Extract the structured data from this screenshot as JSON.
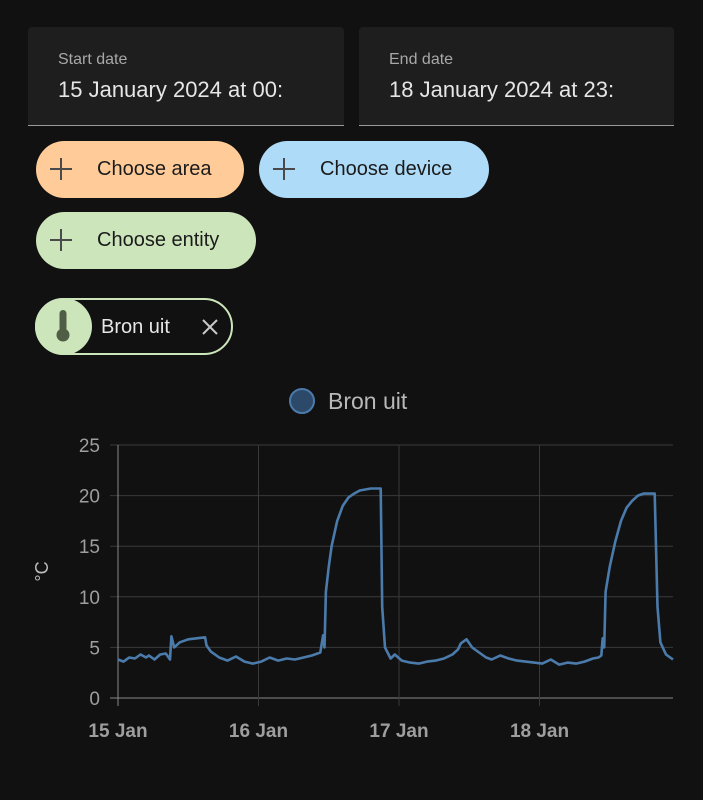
{
  "filters": {
    "start_date": {
      "label": "Start date",
      "value": "15 January 2024 at 00:"
    },
    "end_date": {
      "label": "End date",
      "value": "18 January 2024 at 23:"
    }
  },
  "targets": {
    "area": "Choose area",
    "device": "Choose device",
    "entity": "Choose entity",
    "selected_entity": {
      "label": "Bron uit",
      "icon": "thermometer-icon"
    }
  },
  "colors": {
    "area_chip": "#ffcc99",
    "device_chip": "#aedcf8",
    "entity_chip": "#cce5bb",
    "series_line": "#4b7bab",
    "legend_swatch": "#2c4969"
  },
  "chart_data": {
    "type": "line",
    "legend": [
      "Bron uit"
    ],
    "ylabel": "°C",
    "ylim": [
      0,
      25
    ],
    "yticks": [
      0,
      5,
      10,
      15,
      20,
      25
    ],
    "xlim": [
      0,
      3.95
    ],
    "xticks": [
      {
        "value": 0,
        "label": "15 Jan"
      },
      {
        "value": 1,
        "label": "16 Jan"
      },
      {
        "value": 2,
        "label": "17 Jan"
      },
      {
        "value": 3,
        "label": "18 Jan"
      }
    ],
    "grid": true,
    "series": [
      {
        "name": "Bron uit",
        "x": [
          0,
          0.04,
          0.08,
          0.12,
          0.16,
          0.2,
          0.22,
          0.26,
          0.3,
          0.34,
          0.37,
          0.38,
          0.4,
          0.44,
          0.5,
          0.56,
          0.62,
          0.63,
          0.66,
          0.72,
          0.78,
          0.84,
          0.9,
          0.96,
          1.02,
          1.08,
          1.14,
          1.2,
          1.26,
          1.32,
          1.38,
          1.44,
          1.46,
          1.47,
          1.48,
          1.5,
          1.52,
          1.56,
          1.6,
          1.64,
          1.68,
          1.72,
          1.76,
          1.8,
          1.84,
          1.87,
          1.88,
          1.9,
          1.94,
          1.97,
          2.02,
          2.08,
          2.14,
          2.2,
          2.26,
          2.32,
          2.38,
          2.42,
          2.44,
          2.48,
          2.52,
          2.58,
          2.62,
          2.66,
          2.72,
          2.78,
          2.84,
          2.9,
          2.96,
          3.02,
          3.08,
          3.14,
          3.2,
          3.26,
          3.32,
          3.38,
          3.42,
          3.44,
          3.45,
          3.46,
          3.47,
          3.5,
          3.54,
          3.58,
          3.62,
          3.66,
          3.7,
          3.74,
          3.78,
          3.8,
          3.82,
          3.84,
          3.86,
          3.9,
          3.95
        ],
        "y": [
          3.8,
          3.6,
          4.0,
          3.9,
          4.3,
          4.0,
          4.2,
          3.8,
          4.3,
          4.4,
          3.8,
          6.1,
          5.0,
          5.5,
          5.8,
          5.9,
          6.0,
          5.2,
          4.6,
          4.0,
          3.7,
          4.1,
          3.6,
          3.4,
          3.6,
          4.0,
          3.7,
          3.9,
          3.8,
          4.0,
          4.2,
          4.5,
          6.2,
          5.0,
          10.5,
          13.0,
          15.0,
          17.5,
          19.0,
          19.8,
          20.2,
          20.5,
          20.6,
          20.7,
          20.7,
          20.7,
          9.0,
          5.0,
          3.9,
          4.3,
          3.7,
          3.5,
          3.4,
          3.6,
          3.7,
          3.9,
          4.3,
          4.8,
          5.4,
          5.8,
          5.0,
          4.4,
          4.0,
          3.8,
          4.2,
          3.9,
          3.7,
          3.6,
          3.5,
          3.4,
          3.8,
          3.3,
          3.5,
          3.4,
          3.6,
          3.9,
          4.0,
          4.2,
          5.9,
          5.0,
          10.5,
          13.0,
          15.5,
          17.5,
          18.8,
          19.5,
          20.0,
          20.2,
          20.2,
          20.2,
          20.2,
          9.0,
          5.5,
          4.3,
          3.8
        ]
      }
    ]
  }
}
